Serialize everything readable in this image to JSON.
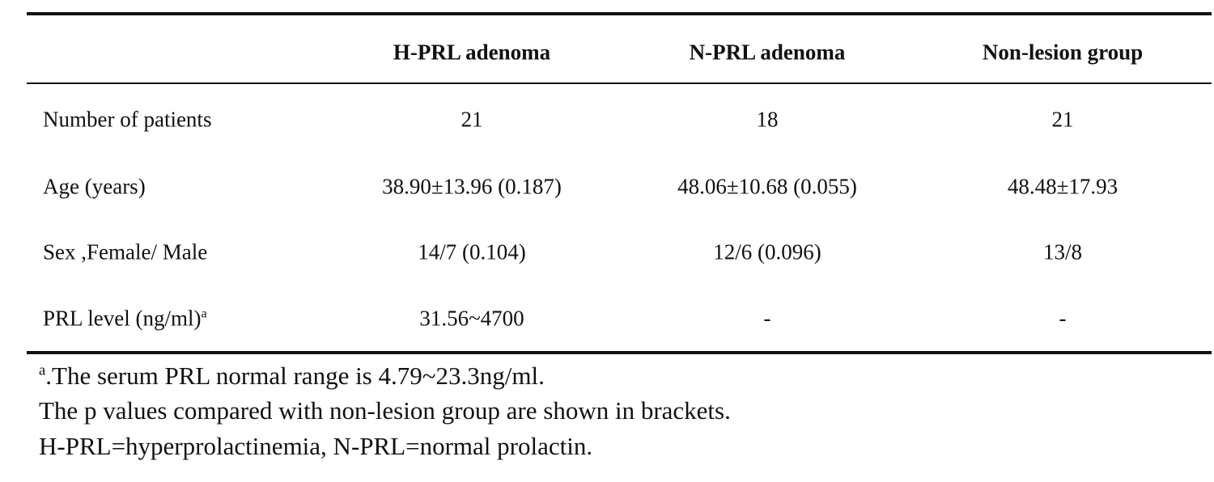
{
  "table": {
    "columns": [
      "H-PRL adenoma",
      "N-PRL adenoma",
      "Non-lesion group"
    ],
    "rows": [
      {
        "label": "Number of patients",
        "cells": [
          "21",
          "18",
          "21"
        ]
      },
      {
        "label": "Age (years)",
        "cells": [
          "38.90±13.96 (0.187)",
          "48.06±10.68 (0.055)",
          "48.48±17.93"
        ]
      },
      {
        "label": "Sex ,Female/ Male",
        "cells": [
          "14/7 (0.104)",
          "12/6 (0.096)",
          "13/8"
        ]
      },
      {
        "label": "PRL level (ng/ml)",
        "label_sup": "a",
        "cells": [
          "31.56~4700",
          "-",
          "-"
        ]
      }
    ]
  },
  "notes": [
    {
      "sup": "a",
      "text": ".The serum PRL normal range is 4.79~23.3ng/ml."
    },
    {
      "text": "The p values compared with non-lesion group are shown in brackets."
    },
    {
      "text": "H-PRL=hyperprolactinemia, N-PRL=normal prolactin."
    }
  ]
}
